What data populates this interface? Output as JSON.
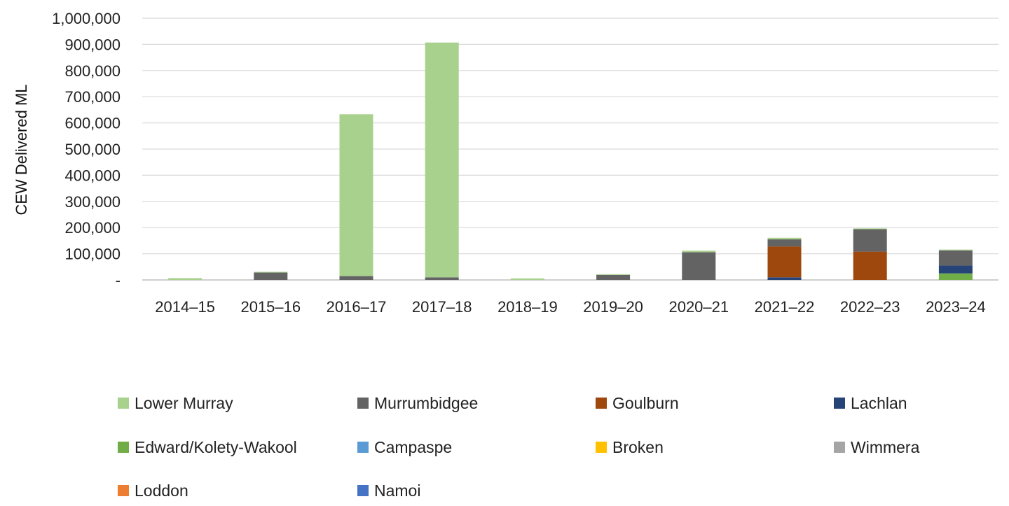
{
  "chart_data": {
    "type": "bar",
    "stacked": true,
    "title": "",
    "xlabel": "",
    "ylabel": "CEW Delivered ML",
    "ylim": [
      0,
      1000000
    ],
    "yticks": [
      0,
      100000,
      200000,
      300000,
      400000,
      500000,
      600000,
      700000,
      800000,
      900000,
      1000000
    ],
    "ytick_labels": [
      "-",
      "100,000",
      "200,000",
      "300,000",
      "400,000",
      "500,000",
      "600,000",
      "700,000",
      "800,000",
      "900,000",
      "1,000,000"
    ],
    "grid": true,
    "legend_position": "bottom",
    "categories": [
      "2014–15",
      "2015–16",
      "2016–17",
      "2017–18",
      "2018–19",
      "2019–20",
      "2020–21",
      "2021–22",
      "2022–23",
      "2023–24"
    ],
    "series": [
      {
        "name": "Namoi",
        "color": "#4472C4",
        "values": [
          0,
          0,
          0,
          0,
          0,
          0,
          0,
          0,
          0,
          0
        ]
      },
      {
        "name": "Loddon",
        "color": "#ED7D31",
        "values": [
          0,
          0,
          0,
          0,
          0,
          0,
          0,
          0,
          0,
          0
        ]
      },
      {
        "name": "Wimmera",
        "color": "#A5A5A5",
        "values": [
          0,
          0,
          0,
          0,
          0,
          0,
          0,
          0,
          0,
          0
        ]
      },
      {
        "name": "Broken",
        "color": "#FFC000",
        "values": [
          0,
          0,
          0,
          0,
          0,
          0,
          0,
          0,
          0,
          0
        ]
      },
      {
        "name": "Campaspe",
        "color": "#5B9BD5",
        "values": [
          0,
          0,
          0,
          0,
          0,
          0,
          0,
          0,
          0,
          0
        ]
      },
      {
        "name": "Edward/Kolety-Wakool",
        "color": "#70AD47",
        "values": [
          0,
          0,
          0,
          0,
          0,
          0,
          0,
          0,
          0,
          25000
        ]
      },
      {
        "name": "Lachlan",
        "color": "#264478",
        "values": [
          0,
          0,
          0,
          0,
          0,
          0,
          0,
          10000,
          0,
          30000
        ]
      },
      {
        "name": "Goulburn",
        "color": "#9E480E",
        "values": [
          0,
          0,
          0,
          0,
          0,
          0,
          0,
          118000,
          108000,
          0
        ]
      },
      {
        "name": "Murrumbidgee",
        "color": "#636363",
        "values": [
          0,
          28000,
          15000,
          10000,
          0,
          19000,
          106000,
          27000,
          86000,
          58000
        ]
      },
      {
        "name": "Lower Murray",
        "color": "#A9D18E",
        "values": [
          7000,
          3000,
          618000,
          897000,
          6000,
          3000,
          6000,
          6000,
          3000,
          3000
        ]
      }
    ]
  },
  "legend": {
    "items": [
      {
        "label": "Lower Murray",
        "color": "#A9D18E"
      },
      {
        "label": "Murrumbidgee",
        "color": "#636363"
      },
      {
        "label": "Goulburn",
        "color": "#9E480E"
      },
      {
        "label": "Lachlan",
        "color": "#264478"
      },
      {
        "label": "Edward/Kolety-Wakool",
        "color": "#70AD47"
      },
      {
        "label": "Campaspe",
        "color": "#5B9BD5"
      },
      {
        "label": "Broken",
        "color": "#FFC000"
      },
      {
        "label": "Wimmera",
        "color": "#A5A5A5"
      },
      {
        "label": "Loddon",
        "color": "#ED7D31"
      },
      {
        "label": "Namoi",
        "color": "#4472C4"
      }
    ]
  }
}
